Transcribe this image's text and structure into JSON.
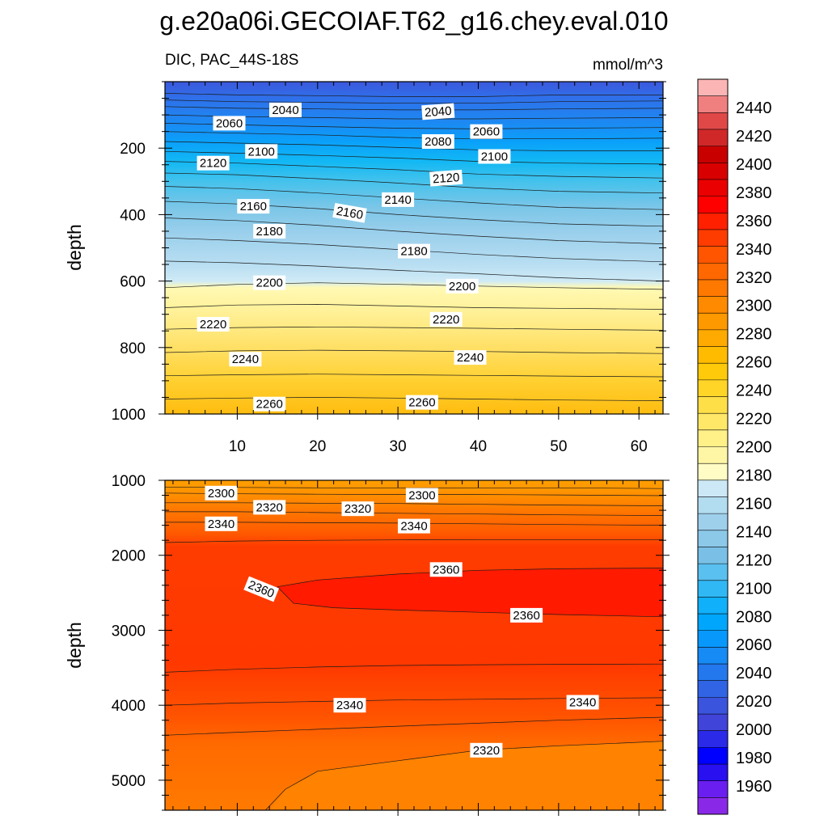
{
  "title": "g.e20a06i.GECOIAF.T62_g16.chey.eval.010",
  "subtitle_left": "DIC, PAC_44S-18S",
  "subtitle_right": "mmol/m^3",
  "chart_data": [
    {
      "type": "heatmap",
      "panel": "upper",
      "xlabel": "",
      "ylabel": "depth",
      "xlim": [
        1,
        63
      ],
      "ylim": [
        0,
        1000
      ],
      "y_reversed": true,
      "x_ticks": [
        10,
        20,
        30,
        40,
        50,
        60
      ],
      "y_ticks": [
        200,
        400,
        600,
        800,
        1000
      ],
      "contour_lines": [
        {
          "x": [
            1,
            10,
            20,
            30,
            40,
            50,
            63
          ],
          "depth": [
            35,
            40,
            42,
            45,
            45,
            40,
            40
          ]
        },
        {
          "x": [
            1,
            10,
            20,
            30,
            40,
            50,
            63
          ],
          "depth": [
            55,
            60,
            62,
            65,
            65,
            60,
            58
          ]
        },
        {
          "x": [
            1,
            10,
            20,
            30,
            40,
            50,
            63
          ],
          "depth": [
            75,
            80,
            82,
            85,
            85,
            82,
            80
          ]
        },
        {
          "x": [
            1,
            10,
            20,
            30,
            40,
            50,
            63
          ],
          "depth": [
            100,
            105,
            108,
            112,
            112,
            110,
            108
          ]
        },
        {
          "x": [
            1,
            10,
            20,
            30,
            40,
            50,
            63
          ],
          "depth": [
            125,
            130,
            135,
            140,
            142,
            140,
            138
          ]
        },
        {
          "x": [
            1,
            10,
            20,
            30,
            40,
            50,
            63
          ],
          "depth": [
            150,
            155,
            160,
            168,
            172,
            172,
            170
          ]
        },
        {
          "x": [
            1,
            10,
            20,
            30,
            40,
            50,
            63
          ],
          "depth": [
            180,
            185,
            190,
            198,
            205,
            208,
            208
          ]
        },
        {
          "x": [
            1,
            10,
            20,
            30,
            40,
            50,
            63
          ],
          "depth": [
            210,
            215,
            222,
            230,
            240,
            245,
            248
          ]
        },
        {
          "x": [
            1,
            10,
            20,
            30,
            40,
            50,
            63
          ],
          "depth": [
            240,
            245,
            255,
            265,
            278,
            285,
            290
          ]
        },
        {
          "x": [
            1,
            10,
            20,
            30,
            40,
            50,
            63
          ],
          "depth": [
            275,
            280,
            292,
            305,
            320,
            330,
            335
          ]
        },
        {
          "x": [
            1,
            10,
            20,
            30,
            40,
            50,
            63
          ],
          "depth": [
            315,
            322,
            335,
            350,
            365,
            378,
            385
          ]
        },
        {
          "x": [
            1,
            10,
            20,
            30,
            40,
            50,
            63
          ],
          "depth": [
            360,
            368,
            382,
            400,
            415,
            428,
            435
          ]
        },
        {
          "x": [
            1,
            10,
            20,
            30,
            40,
            50,
            63
          ],
          "depth": [
            410,
            418,
            432,
            450,
            465,
            478,
            488
          ]
        },
        {
          "x": [
            1,
            10,
            20,
            30,
            40,
            50,
            63
          ],
          "depth": [
            470,
            478,
            490,
            505,
            520,
            532,
            542
          ]
        },
        {
          "x": [
            1,
            10,
            20,
            30,
            40,
            50,
            63
          ],
          "depth": [
            540,
            545,
            555,
            568,
            578,
            590,
            600
          ]
        },
        {
          "x": [
            1,
            10,
            20,
            30,
            40,
            50,
            63
          ],
          "depth": [
            620,
            610,
            605,
            610,
            615,
            620,
            625
          ]
        },
        {
          "x": [
            1,
            10,
            20,
            30,
            40,
            50,
            63
          ],
          "depth": [
            680,
            672,
            670,
            675,
            680,
            682,
            685
          ]
        },
        {
          "x": [
            1,
            10,
            20,
            30,
            40,
            50,
            63
          ],
          "depth": [
            745,
            740,
            738,
            740,
            742,
            745,
            748
          ]
        },
        {
          "x": [
            1,
            10,
            20,
            30,
            40,
            50,
            63
          ],
          "depth": [
            815,
            810,
            808,
            810,
            812,
            815,
            818
          ]
        },
        {
          "x": [
            1,
            10,
            20,
            30,
            40,
            50,
            63
          ],
          "depth": [
            885,
            882,
            880,
            882,
            884,
            886,
            888
          ]
        },
        {
          "x": [
            1,
            10,
            20,
            30,
            40,
            50,
            63
          ],
          "depth": [
            955,
            952,
            950,
            952,
            955,
            958,
            960
          ]
        }
      ],
      "contour_labels": [
        {
          "text": "2040",
          "x": 16,
          "depth": 85,
          "rotation": 0
        },
        {
          "text": "2040",
          "x": 35,
          "depth": 90,
          "rotation": -4
        },
        {
          "text": "2060",
          "x": 9,
          "depth": 125,
          "rotation": 0
        },
        {
          "text": "2060",
          "x": 41,
          "depth": 150,
          "rotation": 0
        },
        {
          "text": "2080",
          "x": 35,
          "depth": 180,
          "rotation": 0
        },
        {
          "text": "2100",
          "x": 13,
          "depth": 210,
          "rotation": 0
        },
        {
          "text": "2100",
          "x": 42,
          "depth": 225,
          "rotation": 0
        },
        {
          "text": "2120",
          "x": 7,
          "depth": 245,
          "rotation": 0
        },
        {
          "text": "2120",
          "x": 36,
          "depth": 290,
          "rotation": -4
        },
        {
          "text": "2140",
          "x": 30,
          "depth": 355,
          "rotation": 0
        },
        {
          "text": "2160",
          "x": 12,
          "depth": 375,
          "rotation": 0
        },
        {
          "text": "2160",
          "x": 24,
          "depth": 395,
          "rotation": 10
        },
        {
          "text": "2180",
          "x": 14,
          "depth": 450,
          "rotation": 0
        },
        {
          "text": "2180",
          "x": 32,
          "depth": 510,
          "rotation": 0
        },
        {
          "text": "2200",
          "x": 14,
          "depth": 605,
          "rotation": 0
        },
        {
          "text": "2200",
          "x": 38,
          "depth": 615,
          "rotation": 0
        },
        {
          "text": "2220",
          "x": 7,
          "depth": 730,
          "rotation": 0
        },
        {
          "text": "2220",
          "x": 36,
          "depth": 715,
          "rotation": 0
        },
        {
          "text": "2240",
          "x": 11,
          "depth": 835,
          "rotation": 0
        },
        {
          "text": "2240",
          "x": 39,
          "depth": 830,
          "rotation": 0
        },
        {
          "text": "2260",
          "x": 14,
          "depth": 970,
          "rotation": 0
        },
        {
          "text": "2260",
          "x": 33,
          "depth": 965,
          "rotation": 0
        }
      ]
    },
    {
      "type": "heatmap",
      "panel": "lower",
      "xlabel": "",
      "ylabel": "depth",
      "xlim": [
        1,
        63
      ],
      "ylim": [
        1000,
        5400
      ],
      "y_reversed": true,
      "x_ticks": [
        10,
        20,
        30,
        40,
        50,
        60
      ],
      "y_ticks": [
        1000,
        2000,
        3000,
        4000,
        5000
      ],
      "contour_lines": [
        {
          "x": [
            1,
            10,
            20,
            30,
            40,
            50,
            63
          ],
          "depth": [
            1090,
            1095,
            1100,
            1105,
            1100,
            1100,
            1110
          ]
        },
        {
          "x": [
            1,
            10,
            20,
            30,
            40,
            50,
            63
          ],
          "depth": [
            1170,
            1180,
            1185,
            1190,
            1190,
            1195,
            1205
          ]
        },
        {
          "x": [
            1,
            10,
            20,
            30,
            40,
            50,
            63
          ],
          "depth": [
            1300,
            1300,
            1305,
            1310,
            1320,
            1330,
            1340
          ]
        },
        {
          "x": [
            1,
            10,
            20,
            30,
            40,
            50,
            63
          ],
          "depth": [
            1420,
            1420,
            1430,
            1440,
            1450,
            1460,
            1470
          ]
        },
        {
          "x": [
            1,
            10,
            20,
            30,
            40,
            50,
            63
          ],
          "depth": [
            1560,
            1560,
            1565,
            1570,
            1580,
            1590,
            1600
          ]
        },
        {
          "x": [
            1,
            10,
            20,
            30,
            40,
            50,
            63
          ],
          "depth": [
            1830,
            1810,
            1800,
            1795,
            1790,
            1790,
            1790
          ]
        },
        {
          "x": [
            1,
            10,
            20,
            30,
            40,
            50,
            63
          ],
          "depth": [
            3560,
            3520,
            3490,
            3470,
            3460,
            3455,
            3450
          ]
        },
        {
          "x": [
            1,
            10,
            20,
            30,
            40,
            50,
            63
          ],
          "depth": [
            4000,
            3970,
            3950,
            3930,
            3920,
            3910,
            3900
          ]
        },
        {
          "x": [
            1,
            10,
            20,
            30,
            40,
            50,
            63
          ],
          "depth": [
            4400,
            4360,
            4320,
            4280,
            4240,
            4200,
            4160
          ]
        }
      ],
      "contour_labels": [
        {
          "text": "2300",
          "x": 8,
          "depth": 1170,
          "rotation": 0
        },
        {
          "text": "2300",
          "x": 33,
          "depth": 1200,
          "rotation": 0
        },
        {
          "text": "2320",
          "x": 14,
          "depth": 1360,
          "rotation": 0
        },
        {
          "text": "2320",
          "x": 25,
          "depth": 1380,
          "rotation": 0
        },
        {
          "text": "2340",
          "x": 8,
          "depth": 1580,
          "rotation": 0
        },
        {
          "text": "2340",
          "x": 32,
          "depth": 1610,
          "rotation": 0
        },
        {
          "text": "2360",
          "x": 36,
          "depth": 2190,
          "rotation": 0
        },
        {
          "text": "2360",
          "x": 13,
          "depth": 2450,
          "rotation": 22
        },
        {
          "text": "2360",
          "x": 46,
          "depth": 2800,
          "rotation": 0
        },
        {
          "text": "2340",
          "x": 24,
          "depth": 4000,
          "rotation": 0
        },
        {
          "text": "2340",
          "x": 53,
          "depth": 3960,
          "rotation": 0
        },
        {
          "text": "2320",
          "x": 41,
          "depth": 4600,
          "rotation": 0
        }
      ]
    }
  ],
  "colorbar": {
    "labels": [
      "2440",
      "2420",
      "2400",
      "2380",
      "2360",
      "2340",
      "2320",
      "2300",
      "2280",
      "2260",
      "2240",
      "2220",
      "2200",
      "2180",
      "2160",
      "2140",
      "2120",
      "2100",
      "2080",
      "2060",
      "2040",
      "2020",
      "2000",
      "1980",
      "1960"
    ],
    "colors": [
      "#fbb5b5",
      "#f08080",
      "#e04848",
      "#d02828",
      "#c80000",
      "#d80000",
      "#ea0000",
      "#ff0000",
      "#ff2000",
      "#ff3c00",
      "#ff5500",
      "#ff6800",
      "#ff7800",
      "#ff8a00",
      "#ff9900",
      "#ffaa00",
      "#ffbb00",
      "#ffca0a",
      "#ffd528",
      "#ffdf48",
      "#ffe868",
      "#fff088",
      "#fff6a5",
      "#fffcc5",
      "#cce8f6",
      "#b2dcf0",
      "#9ed0ec",
      "#8cc8e8",
      "#7ac0e6",
      "#5ac0f0",
      "#30b8f5",
      "#10b0fa",
      "#00a6fc",
      "#0898fc",
      "#168af5",
      "#2478ee",
      "#3064e4",
      "#3a54de",
      "#4044d8",
      "#2a2ae8",
      "#0000ff",
      "#2810f0",
      "#6a1ef0",
      "#8a28e8"
    ]
  }
}
